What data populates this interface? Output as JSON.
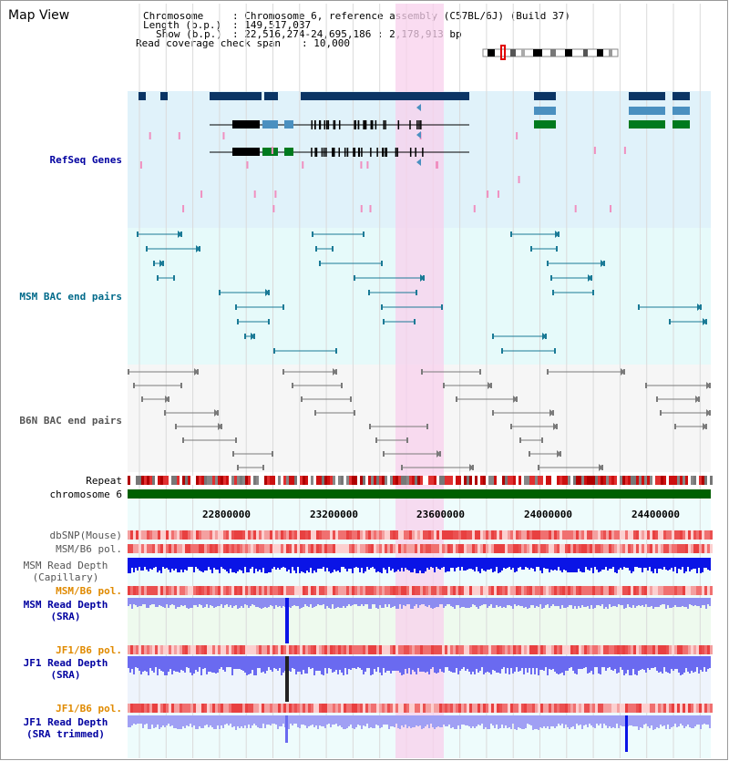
{
  "header": {
    "title": "Map View",
    "chromosome_label": "Chromosome",
    "chromosome_value": ": Chromosome 6, reference assembly (C57BL/6J) (Build 37)",
    "length_label": "Length (b.p.)",
    "length_value": ": 149,517,037",
    "show_label": "Show (b.p.)",
    "show_value": ": 22,516,274-24,695,186 : 2,178,913 bp",
    "coverage_label": "Read coverage check span",
    "coverage_value": ": 10,000"
  },
  "tracks": {
    "refseq": "RefSeq Genes",
    "msm_bac": "MSM BAC end pairs",
    "b6n_bac": "B6N BAC end pairs",
    "repeat": "Repeat",
    "chromosome": "chromosome 6",
    "dbsnp": "dbSNP(Mouse)",
    "msm_b6_pol_1": "MSM/B6 pol.",
    "msm_depth_cap_1": "MSM Read Depth",
    "msm_depth_cap_2": "(Capillary)",
    "msm_b6_pol_2": "MSM/B6 pol.",
    "msm_depth_sra_1": "MSM Read Depth",
    "msm_depth_sra_2": "(SRA)",
    "jf1_b6_pol_1": "JF1/B6 pol.",
    "jf1_depth_sra_1": "JF1 Read Depth",
    "jf1_depth_sra_2": "(SRA)",
    "jf1_b6_pol_2": "JF1/B6 pol.",
    "jf1_depth_trim_1": "JF1 Read Depth",
    "jf1_depth_trim_2": "(SRA trimmed)"
  },
  "axis": {
    "ticks": [
      "22800000",
      "23200000",
      "23600000",
      "24000000",
      "24400000"
    ]
  },
  "colors": {
    "refseq_bg": "#e0f2fa",
    "msm_bg": "#e6fafa",
    "b6n_bg": "#f6f6f6",
    "highlight": "#f8d0ec",
    "refseq_label": "#0000a0",
    "msm_label": "#006a8a",
    "b6n_label": "#555555",
    "orange_label": "#e08a00",
    "blue_label": "#0000a0",
    "chromosome_bar": "#006000",
    "gene_dark": "#0b3565",
    "gene_mid": "#4a90c0",
    "gene_green": "#007a1e",
    "pink_feature": "#f090c0",
    "msm_pair": "#1a7a96",
    "b6n_pair": "#7a7a7a",
    "depth_blue": "#0a14e6",
    "depth_light": "#8c8cf0"
  }
}
